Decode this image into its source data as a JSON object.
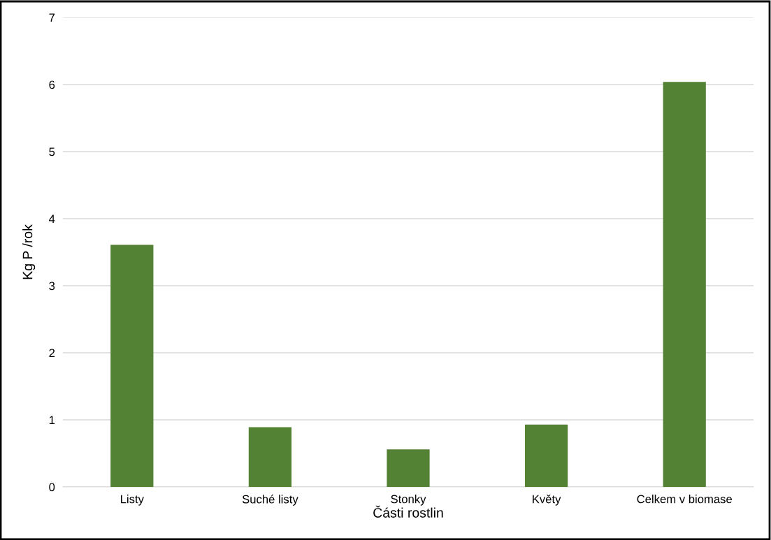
{
  "chart_data": {
    "type": "bar",
    "xlabel": "Části rostlin",
    "ylabel": "Kg P /rok",
    "categories": [
      "Listy",
      "Suché listy",
      "Stonky",
      "Květy",
      "Celkem v biomase"
    ],
    "values": [
      3.61,
      0.89,
      0.56,
      0.93,
      6.04
    ],
    "color": "#548235",
    "ylim": [
      0,
      7
    ],
    "yticks": [
      0,
      1,
      2,
      3,
      4,
      5,
      6,
      7
    ],
    "grid": "y"
  }
}
